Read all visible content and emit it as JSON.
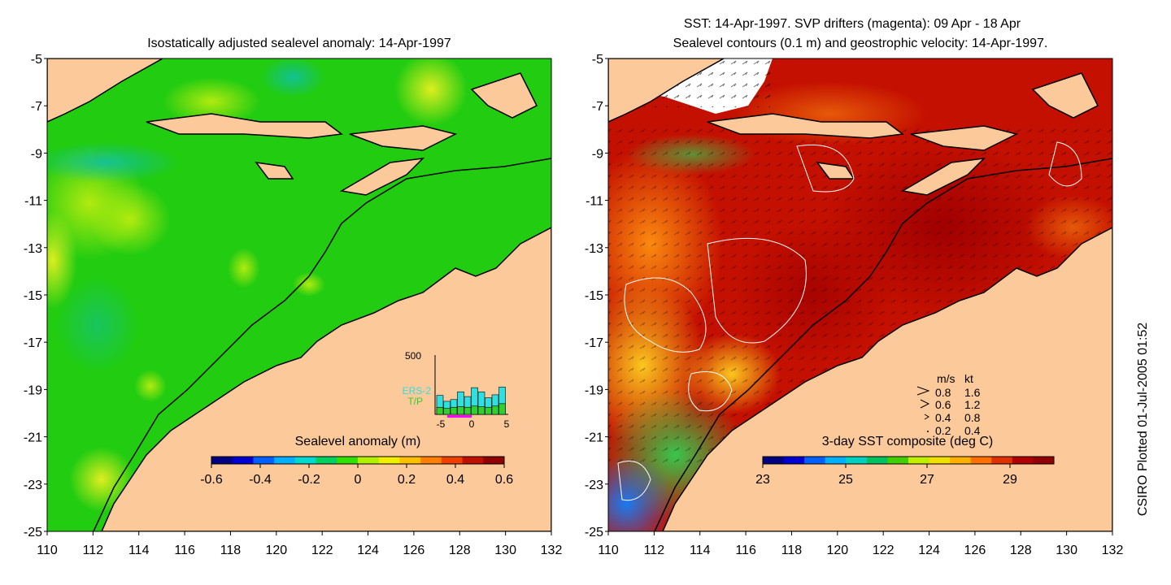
{
  "left_panel": {
    "title": "Isostatically adjusted sealevel anomaly: 14-Apr-1997",
    "colorbar": {
      "label": "Sealevel anomaly (m)",
      "ticks": [
        "-0.6",
        "-0.4",
        "-0.2",
        "0",
        "0.2",
        "0.4",
        "0.6"
      ],
      "colors": [
        "#000080",
        "#0000d0",
        "#0060ff",
        "#00b0ff",
        "#00d8d0",
        "#00d060",
        "#30e000",
        "#b0f000",
        "#f0f000",
        "#ffc000",
        "#ff8000",
        "#f04000",
        "#c01000",
        "#900000"
      ]
    },
    "histogram": {
      "ymax_label": "500",
      "x_ticks": [
        "-5",
        "0",
        "5"
      ],
      "legend": [
        {
          "name": "ERS-2",
          "color": "#30e0e0"
        },
        {
          "name": "T/P",
          "color": "#30d030"
        }
      ],
      "bars": [
        {
          "ers2": 0.32,
          "tp": 0.12
        },
        {
          "ers2": 0.22,
          "tp": 0.1
        },
        {
          "ers2": 0.25,
          "tp": 0.12
        },
        {
          "ers2": 0.38,
          "tp": 0.13
        },
        {
          "ers2": 0.3,
          "tp": 0.12
        },
        {
          "ers2": 0.45,
          "tp": 0.14
        },
        {
          "ers2": 0.38,
          "tp": 0.13
        },
        {
          "ers2": 0.28,
          "tp": 0.12
        },
        {
          "ers2": 0.33,
          "tp": 0.14
        },
        {
          "ers2": 0.46,
          "tp": 0.18
        }
      ]
    }
  },
  "right_panel": {
    "title_line1": "SST: 14-Apr-1997. SVP drifters (magenta): 09 Apr - 18 Apr",
    "title_line2": "Sealevel contours (0.1 m) and geostrophic velocity: 14-Apr-1997.",
    "colorbar": {
      "label": "3-day SST composite (deg C)",
      "ticks": [
        "23",
        "25",
        "27",
        "29"
      ],
      "colors": [
        "#000080",
        "#0000d0",
        "#0060ff",
        "#00b0ff",
        "#00d0c0",
        "#00c060",
        "#40d000",
        "#c0f000",
        "#f0e000",
        "#ffb000",
        "#ff7000",
        "#e03000",
        "#b00000",
        "#900000"
      ]
    },
    "velocity_legend": {
      "header_ms": "m/s",
      "header_kt": "kt",
      "rows": [
        {
          "ms": "0.8",
          "kt": "1.6"
        },
        {
          "ms": "0.6",
          "kt": "1.2"
        },
        {
          "ms": "0.4",
          "kt": "0.8"
        },
        {
          "ms": "0.2",
          "kt": "0.4"
        }
      ]
    }
  },
  "axes": {
    "lat_labels": [
      "-5",
      "-7",
      "-9",
      "-11",
      "-13",
      "-15",
      "-17",
      "-19",
      "-21",
      "-23",
      "-25"
    ],
    "lon_labels": [
      "110",
      "112",
      "114",
      "116",
      "118",
      "120",
      "122",
      "124",
      "126",
      "128",
      "130",
      "132"
    ]
  },
  "credit": "CSIRO Plotted 01-Jul-2005 01:52",
  "colors": {
    "land": "#fbc99a",
    "ocean_left": "#22cc11",
    "ocean_left_light": "#88e010",
    "ocean_left_teal": "#10c080",
    "sst_warm": "#b00000",
    "sst_mid": "#e06010",
    "sst_cool": "#ffb010"
  }
}
